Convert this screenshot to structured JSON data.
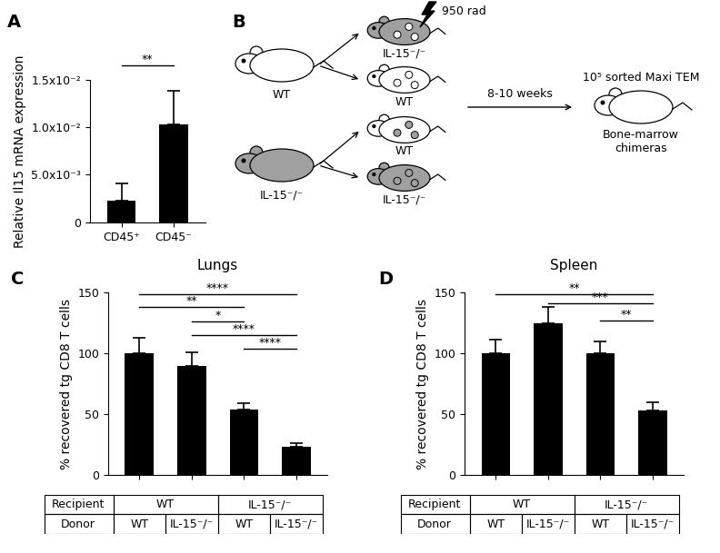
{
  "chart_data": [
    {
      "panel": "A",
      "type": "bar",
      "categories": [
        "CD45⁺",
        "CD45⁻"
      ],
      "values": [
        0.0023,
        0.0103
      ],
      "errors": [
        0.0018,
        0.0035
      ],
      "color": "#000000",
      "ylabel": "Relative Il15 mRNA expression",
      "ylim": [
        0,
        0.015
      ],
      "yticks": [
        0,
        {
          "value": 0.005,
          "label": "5.0x10⁻³"
        },
        {
          "value": 0.01,
          "label": "1.0x10⁻²"
        },
        {
          "value": 0.015,
          "label": "1.5x10⁻²"
        }
      ],
      "significance": [
        {
          "from": 0,
          "to": 1,
          "y": 0.0165,
          "label": "**"
        }
      ]
    },
    {
      "panel": "C",
      "type": "bar",
      "title": "Lungs",
      "categories": [
        null,
        null,
        null,
        null
      ],
      "values": [
        100,
        90,
        54,
        23
      ],
      "errors": [
        13,
        11,
        5,
        3
      ],
      "color": "#000000",
      "ylabel": "% recovered tg CD8 T cells",
      "ylim": [
        0,
        150
      ],
      "yticks": [
        0,
        50,
        100,
        150
      ],
      "tick_labels": "y",
      "significance": [
        {
          "from": 0,
          "to": 3,
          "y": 149,
          "label": "****"
        },
        {
          "from": 0,
          "to": 2,
          "y": 138,
          "label": "**"
        },
        {
          "from": 1,
          "to": 2,
          "y": 126,
          "label": "*"
        },
        {
          "from": 1,
          "to": 3,
          "y": 115,
          "label": "****"
        },
        {
          "from": 2,
          "to": 3,
          "y": 104,
          "label": "****"
        }
      ],
      "table": {
        "rows": [
          {
            "header": "Recipient",
            "cells": [
              {
                "text": "WT",
                "span": 2
              },
              {
                "text": "IL-15⁻/⁻",
                "span": 2
              }
            ]
          },
          {
            "header": "Donor",
            "cells": [
              {
                "text": "WT",
                "span": 1
              },
              {
                "text": "IL-15⁻/⁻",
                "span": 1
              },
              {
                "text": "WT",
                "span": 1
              },
              {
                "text": "IL-15⁻/⁻",
                "span": 1
              }
            ]
          }
        ]
      }
    },
    {
      "panel": "D",
      "type": "bar",
      "title": "Spleen",
      "categories": [
        null,
        null,
        null,
        null
      ],
      "values": [
        100,
        125,
        100,
        53
      ],
      "errors": [
        11,
        13,
        10,
        7
      ],
      "color": "#000000",
      "ylabel": "% recovered tg CD8 T cells",
      "ylim": [
        0,
        150
      ],
      "yticks": [
        0,
        50,
        100,
        150
      ],
      "tick_labels": "y",
      "significance": [
        {
          "from": 0,
          "to": 3,
          "y": 149,
          "label": "**"
        },
        {
          "from": 1,
          "to": 3,
          "y": 141,
          "label": "***"
        },
        {
          "from": 2,
          "to": 3,
          "y": 127,
          "label": "**"
        }
      ],
      "table": {
        "rows": [
          {
            "header": "Recipient",
            "cells": [
              {
                "text": "WT",
                "span": 2
              },
              {
                "text": "IL-15⁻/⁻",
                "span": 2
              }
            ]
          },
          {
            "header": "Donor",
            "cells": [
              {
                "text": "WT",
                "span": 1
              },
              {
                "text": "IL-15⁻/⁻",
                "span": 1
              },
              {
                "text": "WT",
                "span": 1
              },
              {
                "text": "IL-15⁻/⁻",
                "span": 1
              }
            ]
          }
        ]
      }
    }
  ],
  "diagram": {
    "panel": "B",
    "donors": [
      {
        "label": "WT",
        "color": "#ffffff"
      },
      {
        "label": "IL-15⁻/⁻",
        "color": "#a0a0a0"
      }
    ],
    "irradiation": "950 rad",
    "recipients": [
      {
        "label": "IL-15⁻/⁻",
        "color": "#a0a0a0",
        "donor": 0
      },
      {
        "label": "WT",
        "color": "#ffffff",
        "donor": 0
      },
      {
        "label": "WT",
        "color": "#ffffff",
        "donor": 1
      },
      {
        "label": "IL-15⁻/⁻",
        "color": "#a0a0a0",
        "donor": 1
      }
    ],
    "interval": "8-10 weeks",
    "transfer": "10⁵ sorted Maxi TEM",
    "result": {
      "label": "Bone-marrow\nchimeras",
      "color": "#ffffff"
    }
  }
}
